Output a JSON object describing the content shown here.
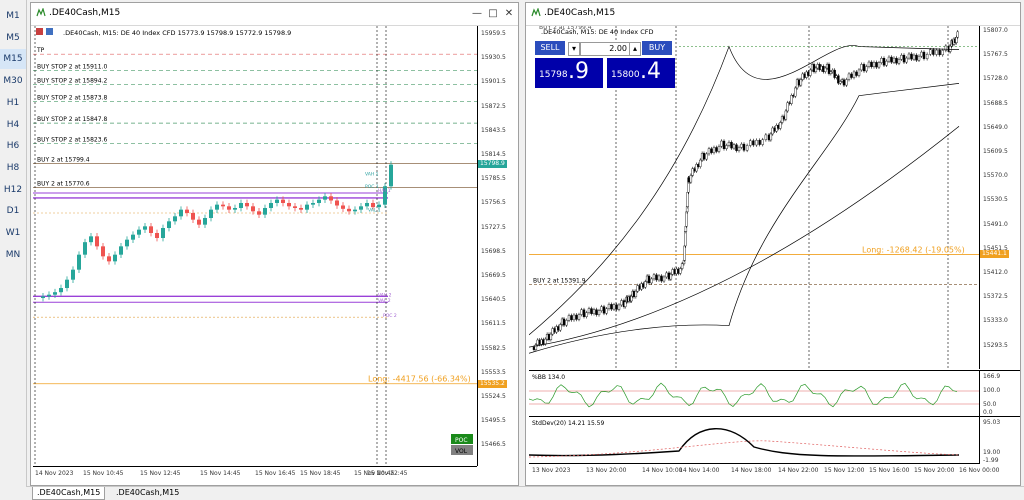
{
  "timeframes": [
    "M1",
    "M5",
    "M15",
    "M30",
    "H1",
    "H4",
    "H6",
    "H8",
    "H12",
    "D1",
    "W1",
    "MN"
  ],
  "active_timeframe": "M15",
  "left_window": {
    "title": ".DE40Cash,M15",
    "info": ".DE40Cash, M15:  DE 40 Index CFD   15773.9 15798.9 15772.9 15798.9",
    "price_ticks": [
      "15959.5",
      "15930.5",
      "15901.5",
      "15872.5",
      "15843.5",
      "15814.5",
      "15785.5",
      "15756.5",
      "15727.5",
      "15698.5",
      "15669.5",
      "15640.5",
      "15611.5",
      "15582.5",
      "15553.5",
      "15524.5",
      "15495.5",
      "15466.5"
    ],
    "time_ticks": [
      "14 Nov 2023",
      "15 Nov 10:45",
      "15 Nov 12:45",
      "15 Nov 14:45",
      "15 Nov 16:45",
      "15 Nov 18:45",
      "15 Nov 20:45",
      "15 Nov 22:45"
    ],
    "order_lines": [
      "TP",
      "BUY STOP 2 at 15911.0",
      "BUY STOP 2 at 15894.2",
      "BUY STOP 2 at 15873.8",
      "BUY STOP 2 at 15847.8",
      "BUY STOP 2 at 15823.6",
      "BUY 2 at 15799.4",
      "BUY 2 at 15770.6"
    ],
    "current_price": "15798.9",
    "long_label": "Long: -4417.56  (-66.34%)",
    "long_price": "15535.2",
    "poc_label": "POC",
    "vol_label": "VOL",
    "small_labels": [
      "VAH 1",
      "POC 1",
      "VAL 1",
      "VAH 2",
      "VAL 2",
      "POC 2",
      "H/H 1",
      "20 Oct",
      "2V"
    ]
  },
  "right_window": {
    "title": ".DE40Cash,M15",
    "info": ".DE40Cash, M15:  DE 40 Index CFD",
    "buy_overlay": "BUY 2 at 15799.4",
    "sell_label": "SELL",
    "buy_label": "BUY",
    "lot": "2.00",
    "bid_small": "15798",
    "bid_big": ".9",
    "ask_small": "15800",
    "ask_big": ".4",
    "price_ticks": [
      "15807.0",
      "15767.5",
      "15728.0",
      "15688.5",
      "15649.0",
      "15609.5",
      "15570.0",
      "15530.5",
      "15491.0",
      "15451.5",
      "15412.0",
      "15372.5",
      "15333.0",
      "15293.5"
    ],
    "time_ticks": [
      "13 Nov 2023",
      "13 Nov 20:00",
      "14 Nov 10:00",
      "14 Nov 14:00",
      "14 Nov 18:00",
      "14 Nov 22:00",
      "15 Nov 12:00",
      "15 Nov 16:00",
      "15 Nov 20:00",
      "16 Nov 00:00"
    ],
    "long_label": "Long: -1268.42  (-19.05%)",
    "long_price": "15441.1",
    "buy_line_label": "BUY 2 at 15391.9",
    "bb_label": "%BB 134.0",
    "bb_ticks": [
      "166.9",
      "100.0",
      "50.0",
      "0.0"
    ],
    "sd_label": "StdDev(20) 14.21 15.59",
    "sd_ticks": [
      "95.03",
      "19.00",
      "-1.99"
    ]
  },
  "tabs": [
    ".DE40Cash,M15",
    ".DE40Cash,M15"
  ],
  "colors": {
    "bull": "#26a69a",
    "bear": "#ef5350",
    "order_line": "#4a9a6a",
    "tp_line": "#e06060",
    "long_line": "#f0a020",
    "buy_line": "#6060c0",
    "purple": "#9a40d8"
  }
}
